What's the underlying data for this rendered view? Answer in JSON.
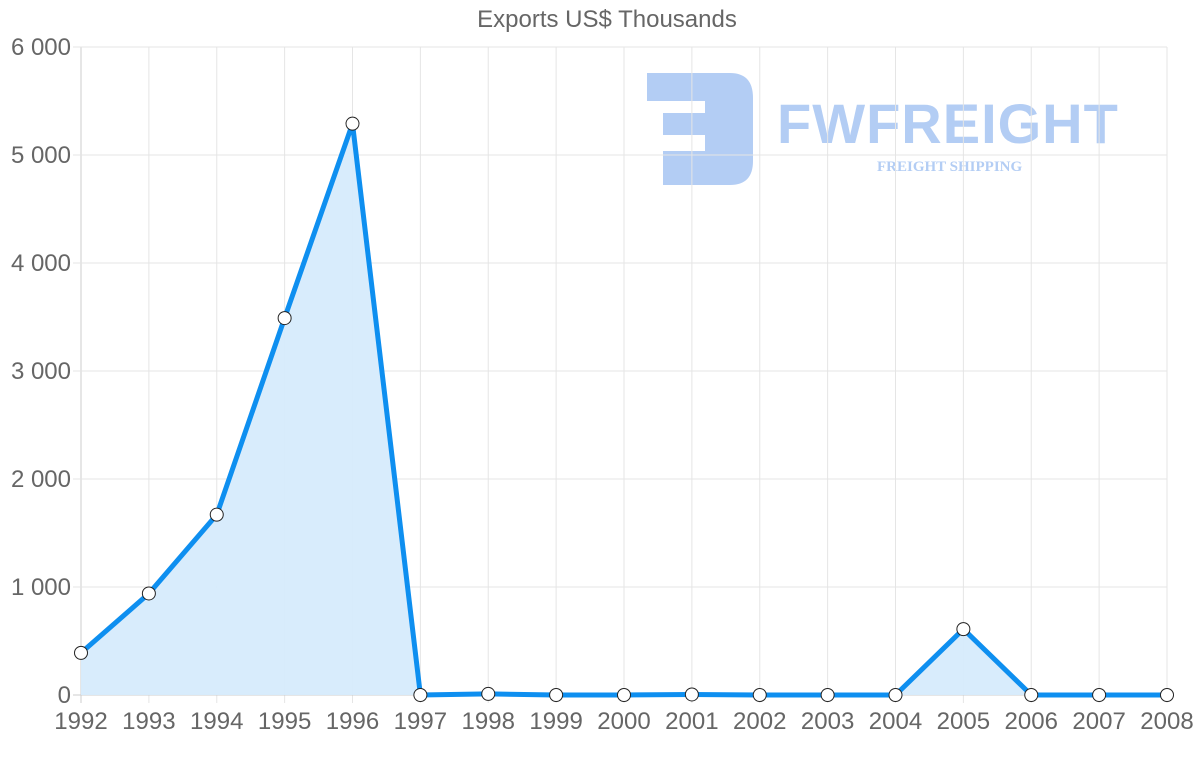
{
  "title": "Exports US$ Thousands",
  "watermark": {
    "brand": "FWFREIGHT",
    "tagline": "FREIGHT SHIPPING",
    "color": "#b3cdf4"
  },
  "colors": {
    "line": "#0e8ff0",
    "fill": "#d6ebfc",
    "grid": "#e5e5e5",
    "axis": "#cccccc",
    "text": "#666666",
    "point_fill": "#ffffff",
    "point_stroke": "#222222"
  },
  "chart_data": {
    "type": "area",
    "title": "Exports US$ Thousands",
    "xlabel": "",
    "ylabel": "",
    "categories": [
      "1992",
      "1993",
      "1994",
      "1995",
      "1996",
      "1997",
      "1998",
      "1999",
      "2000",
      "2001",
      "2002",
      "2003",
      "2004",
      "2005",
      "2006",
      "2007",
      "2008"
    ],
    "series": [
      {
        "name": "Exports US$ Thousands",
        "values": [
          390,
          940,
          1670,
          3490,
          5290,
          0,
          10,
          0,
          0,
          5,
          0,
          0,
          0,
          610,
          0,
          0,
          0
        ]
      }
    ],
    "ylim": [
      0,
      6000
    ],
    "yticks": [
      0,
      1000,
      2000,
      3000,
      4000,
      5000,
      6000
    ],
    "ytick_labels": [
      "0",
      "1 000",
      "2 000",
      "3 000",
      "4 000",
      "5 000",
      "6 000"
    ],
    "grid": true,
    "legend": "none"
  }
}
